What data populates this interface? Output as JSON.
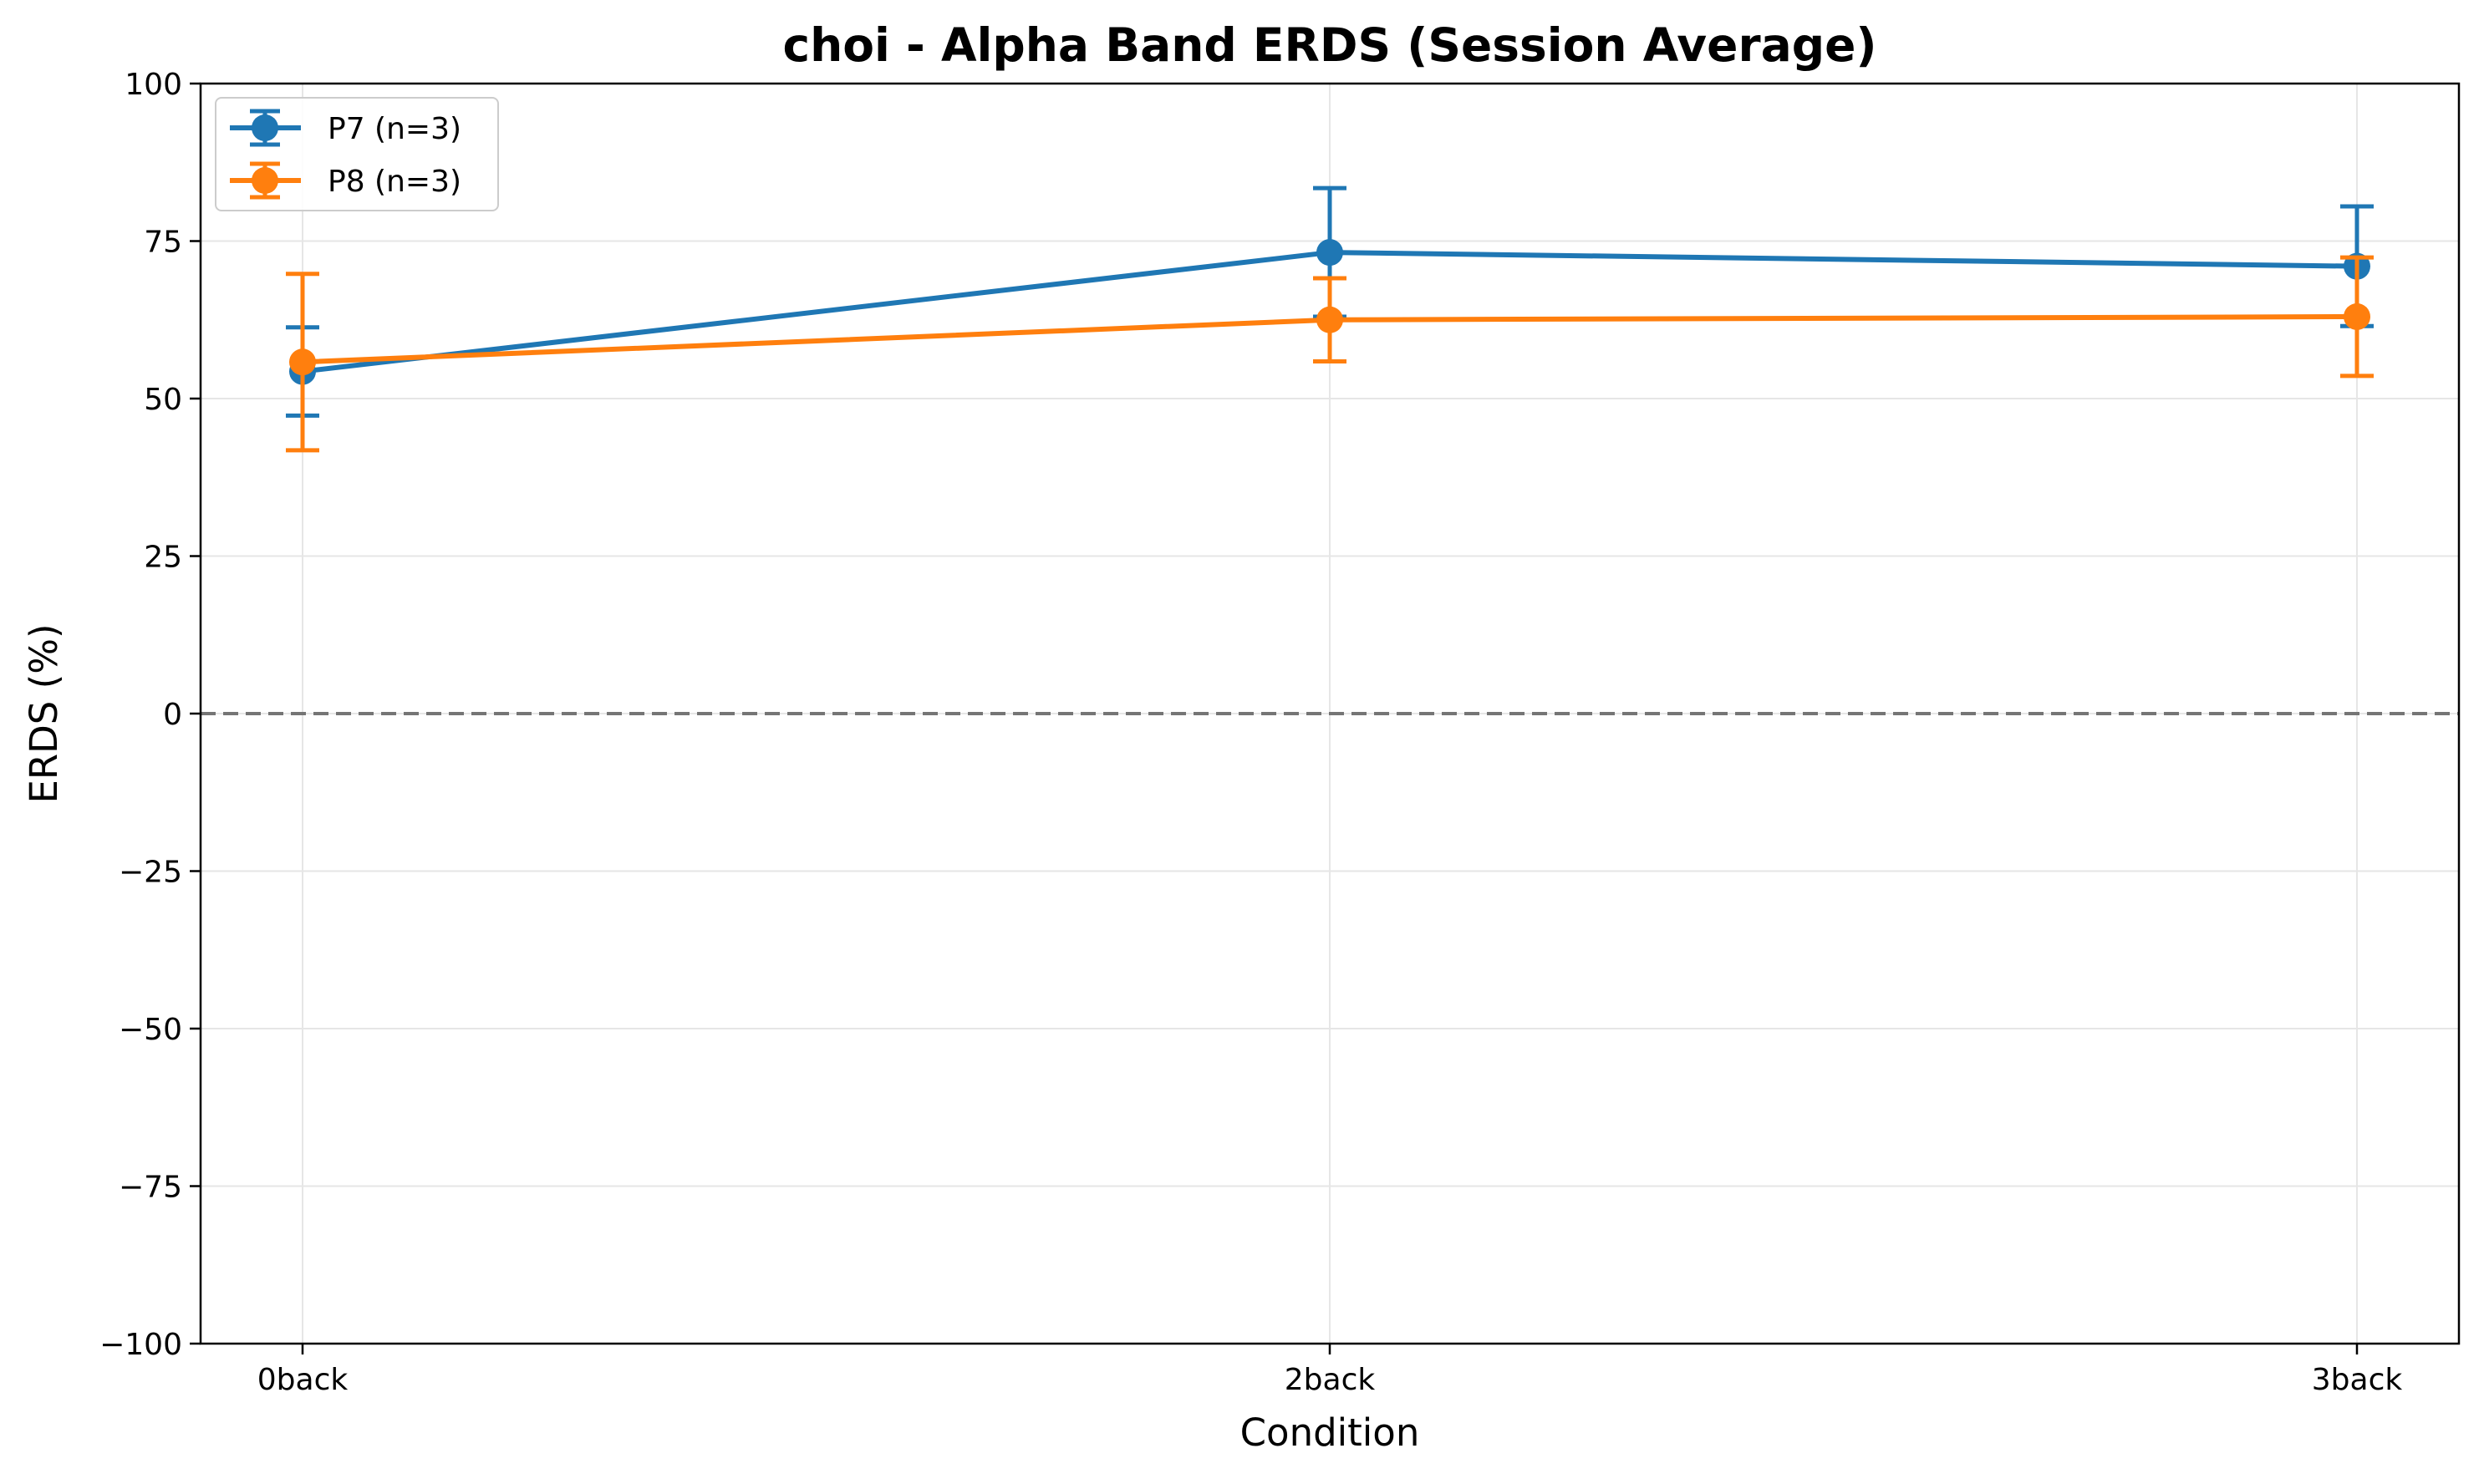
{
  "chart_data": {
    "type": "line",
    "title": "choi - Alpha Band ERDS (Session Average)",
    "xlabel": "Condition",
    "ylabel": "ERDS (%)",
    "categories": [
      "0back",
      "2back",
      "3back"
    ],
    "ylim": [
      -100,
      100
    ],
    "yticks": [
      -100,
      -75,
      -50,
      -25,
      0,
      25,
      50,
      75,
      100
    ],
    "ytick_labels": [
      "−100",
      "−75",
      "−50",
      "−25",
      "0",
      "25",
      "50",
      "75",
      "100"
    ],
    "grid": true,
    "legend_position": "top-left",
    "reference_line": {
      "y": 0,
      "style": "dashed",
      "color": "#757575"
    },
    "series": [
      {
        "name": "P7 (n=3)",
        "color": "#1f77b4",
        "values": [
          54.3,
          73.2,
          71.0
        ],
        "error": [
          7.0,
          10.2,
          9.5
        ]
      },
      {
        "name": "P8 (n=3)",
        "color": "#ff7f0e",
        "values": [
          55.8,
          62.5,
          63.0
        ],
        "error": [
          14.0,
          6.6,
          9.4
        ]
      }
    ]
  }
}
